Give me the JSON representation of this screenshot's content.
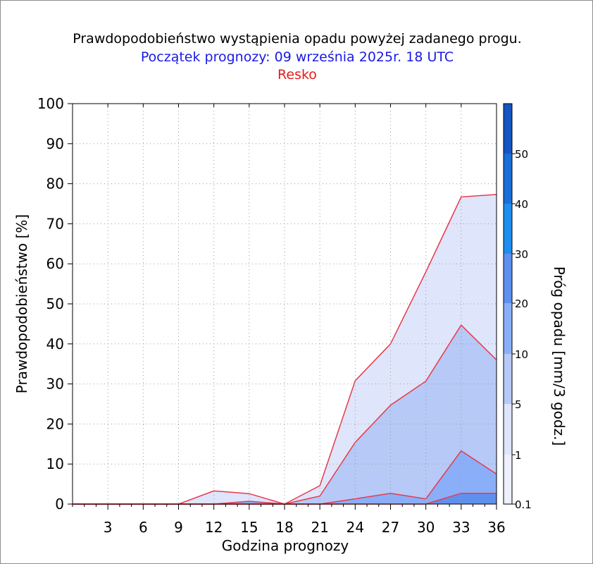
{
  "title": "Prawdopodobieństwo wystąpienia opadu powyżej zadanego progu.",
  "subtitle": "Początek prognozy: 09 września 2025r. 18 UTC",
  "location": "Resko",
  "chart_data": {
    "type": "area",
    "title": "Prawdopodobieństwo wystąpienia opadu powyżej zadanego progu.",
    "xlabel": "Godzina prognozy",
    "ylabel": "Prawdopodobieństwo [%]",
    "colorbar_label": "Próg opadu [mm/3 godz.]",
    "xlim": [
      0,
      36
    ],
    "ylim": [
      0,
      100
    ],
    "x_ticks": [
      3,
      6,
      9,
      12,
      15,
      18,
      21,
      24,
      27,
      30,
      33,
      36
    ],
    "y_ticks": [
      0,
      10,
      20,
      30,
      40,
      50,
      60,
      70,
      80,
      90,
      100
    ],
    "grid": true,
    "x": [
      0,
      3,
      6,
      9,
      12,
      15,
      18,
      21,
      24,
      27,
      30,
      33,
      36
    ],
    "series": [
      {
        "threshold": "0.1",
        "color": "#dfe5fb",
        "values": [
          0,
          0,
          0,
          0,
          3.3,
          2.6,
          0,
          4.6,
          30.8,
          40,
          58,
          76.7,
          77.3
        ]
      },
      {
        "threshold": "1",
        "color": "#b6c9f7",
        "values": [
          0,
          0,
          0,
          0,
          0,
          0,
          0,
          2,
          15.4,
          24.7,
          30.7,
          44.7,
          36
        ]
      },
      {
        "threshold": "5",
        "color": "#8aaff8",
        "values": [
          0,
          0,
          0,
          0,
          0,
          0.7,
          0,
          0,
          1.3,
          2.7,
          1.3,
          13.3,
          7.5
        ]
      },
      {
        "threshold": "10",
        "color": "#5e91ef",
        "values": [
          0,
          0,
          0,
          0,
          0,
          0,
          0,
          0,
          0,
          0,
          0,
          2.7,
          2.7
        ]
      }
    ],
    "colorbar": {
      "labels": [
        "0.1",
        "1",
        "5",
        "10",
        "20",
        "30",
        "40",
        "50"
      ],
      "colors": [
        "#eef1fd",
        "#dfe5fb",
        "#b6c9f7",
        "#8aaff8",
        "#5e91ef",
        "#1e8ef0",
        "#1a6fd8",
        "#1555c2",
        "#0f3f9e"
      ]
    }
  }
}
